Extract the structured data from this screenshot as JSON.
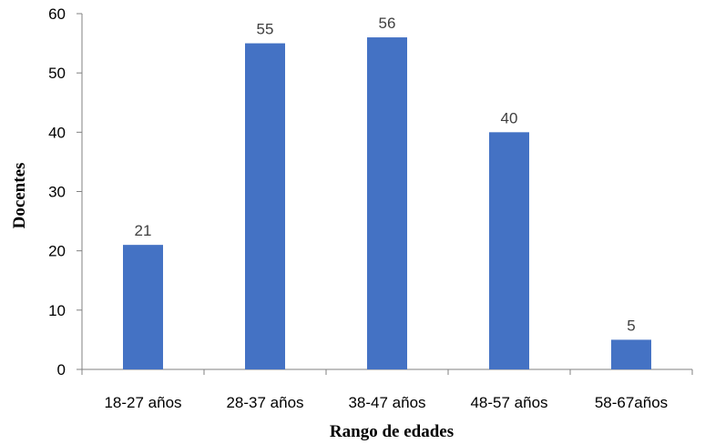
{
  "chart_data": {
    "type": "bar",
    "categories": [
      "18-27 años",
      "28-37 años",
      "38-47 años",
      "48-57 años",
      "58-67años"
    ],
    "values": [
      21,
      55,
      56,
      40,
      5
    ],
    "title": "",
    "xlabel": "Rango de edades",
    "ylabel": "Docentes",
    "ylim": [
      0,
      60
    ],
    "yticks": [
      0,
      10,
      20,
      30,
      40,
      50,
      60
    ],
    "grid": false,
    "legend": "none",
    "bar_color": "#4472C4",
    "data_labels": true
  }
}
